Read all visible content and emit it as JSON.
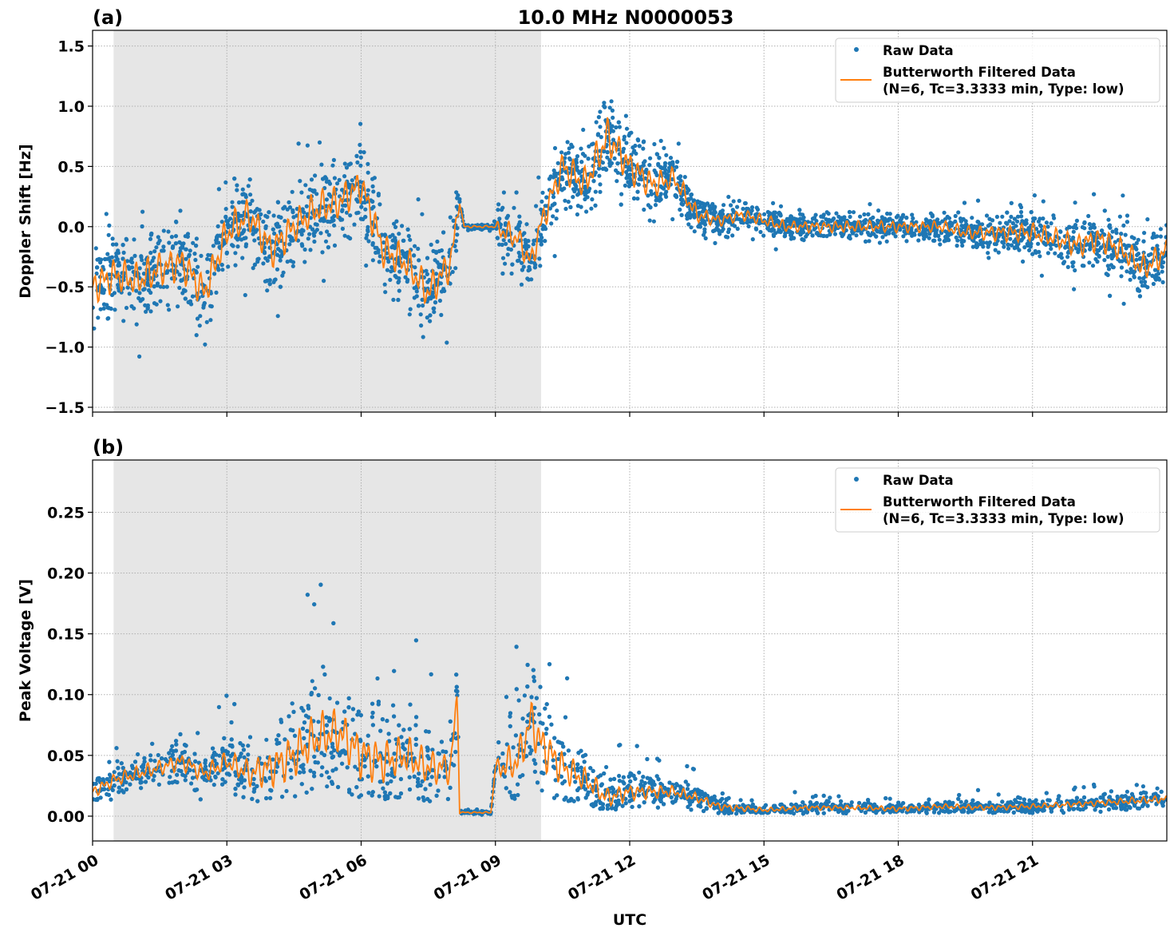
{
  "chart_data": [
    {
      "type": "scatter",
      "panel_label": "(a)",
      "title": "10.0 MHz N0000053",
      "xlabel": "",
      "ylabel": "Doppler Shift [Hz]",
      "xlim_hours": [
        0,
        24
      ],
      "ylim": [
        -1.54,
        1.63
      ],
      "yticks": [
        -1.5,
        -1.0,
        -0.5,
        0.0,
        0.5,
        1.0,
        1.5
      ],
      "ytick_labels": [
        "−1.5",
        "−1.0",
        "−0.5",
        "0.0",
        "0.5",
        "1.0",
        "1.5"
      ],
      "shaded_region_hours": [
        0.47,
        10.02
      ],
      "grid": true,
      "legend": {
        "placement": "top-right",
        "entries": [
          "Raw Data",
          "Butterworth Filtered Data",
          "(N=6, Tc=3.3333 min, Type: low)"
        ]
      },
      "series": [
        {
          "name": "Butterworth Filtered Data",
          "color": "#ff7f0e",
          "x": [
            0,
            0.5,
            1,
            1.5,
            2,
            2.5,
            3,
            3.5,
            4,
            4.5,
            5,
            5.5,
            6,
            6.5,
            7,
            7.5,
            8,
            8.2,
            8.3,
            9,
            9.5,
            9.8,
            10,
            10.5,
            11,
            11.5,
            12,
            12.5,
            13,
            13.5,
            14,
            14.5,
            15,
            15.5,
            16,
            17,
            18,
            19,
            19.5,
            20,
            20.5,
            21,
            21.5,
            22,
            22.5,
            23,
            23.5,
            24
          ],
          "y": [
            -0.5,
            -0.4,
            -0.45,
            -0.35,
            -0.3,
            -0.55,
            -0.05,
            0.1,
            -0.2,
            0.0,
            0.15,
            0.2,
            0.35,
            -0.2,
            -0.3,
            -0.55,
            -0.3,
            0.2,
            0.0,
            0.0,
            -0.1,
            -0.3,
            0.0,
            0.5,
            0.35,
            0.75,
            0.5,
            0.35,
            0.4,
            0.1,
            0.05,
            0.1,
            0.05,
            0.0,
            0.0,
            0.0,
            0.0,
            0.0,
            -0.05,
            -0.05,
            -0.05,
            -0.05,
            -0.1,
            -0.15,
            -0.1,
            -0.2,
            -0.35,
            -0.2
          ]
        },
        {
          "name": "Raw Data",
          "color": "#1f77b4",
          "spread_x": [
            0,
            8.1,
            8.2,
            9.0,
            9.1,
            10,
            11.5,
            14,
            19,
            22,
            24
          ],
          "spread": [
            0.45,
            0.45,
            0.03,
            0.03,
            0.3,
            0.35,
            0.5,
            0.15,
            0.15,
            0.3,
            0.35
          ]
        }
      ]
    },
    {
      "type": "scatter",
      "panel_label": "(b)",
      "xlabel": "UTC",
      "ylabel": "Peak Voltage [V]",
      "xlim_hours": [
        0,
        24
      ],
      "ylim": [
        -0.0204,
        0.293
      ],
      "yticks": [
        0.0,
        0.05,
        0.1,
        0.15,
        0.2,
        0.25
      ],
      "ytick_labels": [
        "0.00",
        "0.05",
        "0.10",
        "0.15",
        "0.20",
        "0.25"
      ],
      "xticks_hours": [
        0,
        3,
        6,
        9,
        12,
        15,
        18,
        21
      ],
      "xtick_labels": [
        "07-21 00",
        "07-21 03",
        "07-21 06",
        "07-21 09",
        "07-21 12",
        "07-21 15",
        "07-21 18",
        "07-21 21"
      ],
      "shaded_region_hours": [
        0.47,
        10.02
      ],
      "grid": true,
      "legend": {
        "placement": "top-right",
        "entries": [
          "Raw Data",
          "Butterworth Filtered Data",
          "(N=6, Tc=3.3333 min, Type: low)"
        ]
      },
      "series": [
        {
          "name": "Butterworth Filtered Data",
          "color": "#ff7f0e",
          "x": [
            0,
            0.5,
            1,
            1.5,
            2,
            2.5,
            3,
            3.5,
            4,
            4.5,
            5,
            5.5,
            6,
            6.5,
            7,
            7.5,
            8,
            8.15,
            8.2,
            8.3,
            8.9,
            9.0,
            9.5,
            9.8,
            10,
            10.5,
            11,
            11.5,
            12,
            12.5,
            13,
            13.5,
            14,
            15,
            16,
            17,
            18,
            19,
            20,
            21,
            22,
            23,
            24
          ],
          "y": [
            0.02,
            0.03,
            0.035,
            0.04,
            0.045,
            0.035,
            0.045,
            0.035,
            0.04,
            0.05,
            0.065,
            0.07,
            0.05,
            0.045,
            0.05,
            0.04,
            0.04,
            0.1,
            0.003,
            0.003,
            0.003,
            0.04,
            0.045,
            0.08,
            0.06,
            0.04,
            0.03,
            0.015,
            0.02,
            0.02,
            0.02,
            0.015,
            0.008,
            0.005,
            0.007,
            0.007,
            0.006,
            0.008,
            0.007,
            0.008,
            0.01,
            0.012,
            0.014
          ]
        },
        {
          "name": "Raw Data",
          "color": "#1f77b4",
          "spread_x": [
            0,
            3,
            4.5,
            6,
            8.1,
            8.2,
            9.0,
            9.1,
            10,
            11,
            12,
            14,
            15,
            22,
            24
          ],
          "spread": [
            0.015,
            0.025,
            0.06,
            0.06,
            0.04,
            0.002,
            0.002,
            0.04,
            0.06,
            0.03,
            0.02,
            0.01,
            0.006,
            0.007,
            0.01
          ]
        }
      ]
    }
  ]
}
